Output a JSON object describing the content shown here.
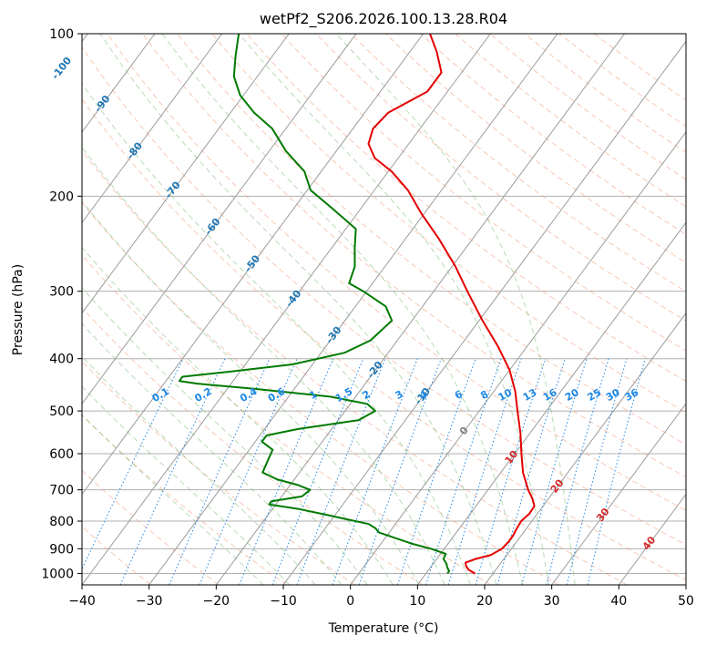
{
  "chart_data": {
    "type": "line",
    "subtype": "skew-t log-p sounding",
    "title": "wetPf2_S206.2026.100.13.28.R04",
    "xlabel": "Temperature (°C)",
    "ylabel": "Pressure (hPa)",
    "xlim": [
      -40,
      50
    ],
    "ylim_hpa": [
      1050,
      100
    ],
    "x_ticks": [
      -40,
      -30,
      -20,
      -10,
      0,
      10,
      20,
      30,
      40,
      50
    ],
    "x_tick_labels": [
      "−40",
      "−30",
      "−20",
      "−10",
      "0",
      "10",
      "20",
      "30",
      "40",
      "50"
    ],
    "y_ticks": [
      100,
      200,
      300,
      400,
      500,
      600,
      700,
      800,
      900,
      1000
    ],
    "y_tick_labels": [
      "100",
      "200",
      "300",
      "400",
      "500",
      "600",
      "700",
      "800",
      "900",
      "1000"
    ],
    "isotherm_labels": [
      {
        "temp": -100,
        "p": 116,
        "text": "-100"
      },
      {
        "temp": -90,
        "p": 135,
        "text": "-90"
      },
      {
        "temp": -80,
        "p": 165,
        "text": "-80"
      },
      {
        "temp": -70,
        "p": 195,
        "text": "-70"
      },
      {
        "temp": -60,
        "p": 228,
        "text": "-60"
      },
      {
        "temp": -50,
        "p": 267,
        "text": "-50"
      },
      {
        "temp": -40,
        "p": 310,
        "text": "-40"
      },
      {
        "temp": -30,
        "p": 362,
        "text": "-30"
      },
      {
        "temp": -20,
        "p": 420,
        "text": "-20"
      },
      {
        "temp": -10,
        "p": 470,
        "text": "-10"
      },
      {
        "temp": 0,
        "p": 545,
        "text": "0"
      },
      {
        "temp": 10,
        "p": 610,
        "text": "10"
      },
      {
        "temp": 20,
        "p": 690,
        "text": "20"
      },
      {
        "temp": 30,
        "p": 780,
        "text": "30"
      },
      {
        "temp": 40,
        "p": 880,
        "text": "40"
      }
    ],
    "mixing_ratios": [
      0.1,
      0.2,
      0.4,
      0.6,
      1,
      1.5,
      2,
      3,
      4,
      6,
      8,
      10,
      13,
      16,
      20,
      25,
      30,
      36
    ],
    "mixing_ratio_labels": [
      "0.1",
      "0.2",
      "0.4",
      "0.6",
      "1",
      "1.5",
      "2",
      "3",
      "4",
      "6",
      "8",
      "10",
      "13",
      "16",
      "20",
      "25",
      "30",
      "36"
    ],
    "mixing_ratio_label_p": 480,
    "series": [
      {
        "name": "Temperature",
        "color": "#e30000",
        "points": [
          [
            1000,
            17.3
          ],
          [
            985,
            16
          ],
          [
            970,
            15.2
          ],
          [
            955,
            14.7
          ],
          [
            940,
            15.8
          ],
          [
            925,
            17.6
          ],
          [
            900,
            18.6
          ],
          [
            875,
            18.8
          ],
          [
            850,
            18.8
          ],
          [
            830,
            18.6
          ],
          [
            800,
            18.4
          ],
          [
            775,
            18.8
          ],
          [
            750,
            18.7
          ],
          [
            725,
            17.5
          ],
          [
            700,
            16
          ],
          [
            650,
            13.3
          ],
          [
            600,
            11
          ],
          [
            550,
            8.6
          ],
          [
            500,
            5.7
          ],
          [
            460,
            3.2
          ],
          [
            420,
            0
          ],
          [
            380,
            -4.3
          ],
          [
            340,
            -9.5
          ],
          [
            300,
            -15
          ],
          [
            270,
            -19.5
          ],
          [
            240,
            -25
          ],
          [
            215,
            -30.5
          ],
          [
            195,
            -35
          ],
          [
            180,
            -39.5
          ],
          [
            170,
            -43.5
          ],
          [
            160,
            -46
          ],
          [
            150,
            -47
          ],
          [
            140,
            -46.5
          ],
          [
            128,
            -43
          ],
          [
            118,
            -43
          ],
          [
            108,
            -46
          ],
          [
            100,
            -49
          ]
        ]
      },
      {
        "name": "Dewpoint",
        "color": "#007a00",
        "points": [
          [
            1000,
            13.2
          ],
          [
            990,
            13.2
          ],
          [
            975,
            12.5
          ],
          [
            960,
            12
          ],
          [
            940,
            11
          ],
          [
            920,
            10.8
          ],
          [
            900,
            8
          ],
          [
            880,
            4.5
          ],
          [
            860,
            1.5
          ],
          [
            840,
            -1.5
          ],
          [
            825,
            -2.5
          ],
          [
            810,
            -4
          ],
          [
            795,
            -7.5
          ],
          [
            780,
            -11
          ],
          [
            760,
            -16
          ],
          [
            745,
            -21
          ],
          [
            735,
            -21
          ],
          [
            720,
            -17
          ],
          [
            700,
            -16.5
          ],
          [
            685,
            -19
          ],
          [
            670,
            -22.5
          ],
          [
            650,
            -25.5
          ],
          [
            620,
            -26
          ],
          [
            590,
            -26.5
          ],
          [
            570,
            -29
          ],
          [
            555,
            -29
          ],
          [
            540,
            -25
          ],
          [
            520,
            -17
          ],
          [
            500,
            -15.5
          ],
          [
            485,
            -17.5
          ],
          [
            470,
            -24
          ],
          [
            455,
            -36
          ],
          [
            445,
            -45
          ],
          [
            440,
            -48
          ],
          [
            432,
            -48
          ],
          [
            425,
            -43
          ],
          [
            410,
            -33
          ],
          [
            390,
            -26.5
          ],
          [
            370,
            -24
          ],
          [
            340,
            -23
          ],
          [
            320,
            -25.5
          ],
          [
            300,
            -30.5
          ],
          [
            290,
            -33.5
          ],
          [
            270,
            -34.5
          ],
          [
            250,
            -36.5
          ],
          [
            230,
            -38.5
          ],
          [
            210,
            -44.5
          ],
          [
            195,
            -49.5
          ],
          [
            180,
            -52.5
          ],
          [
            165,
            -57.5
          ],
          [
            150,
            -62
          ],
          [
            140,
            -66.5
          ],
          [
            130,
            -70.5
          ],
          [
            120,
            -73.5
          ],
          [
            110,
            -75.5
          ],
          [
            100,
            -77.5
          ]
        ]
      }
    ]
  }
}
